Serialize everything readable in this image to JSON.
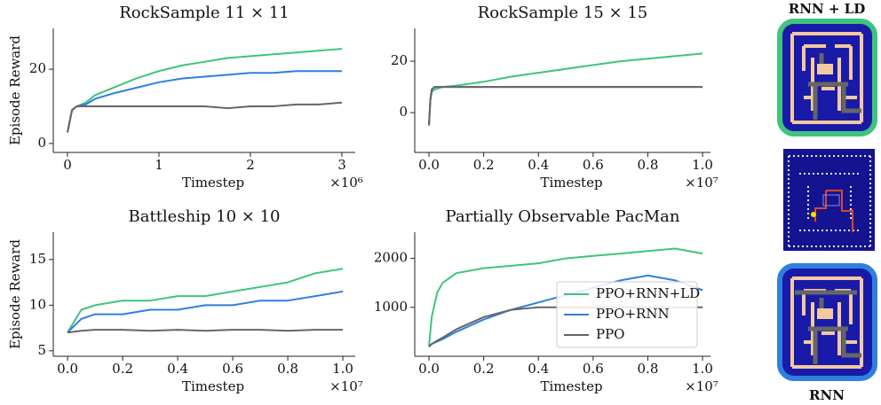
{
  "chart_data": [
    {
      "type": "line",
      "title": "RockSample 11 × 11",
      "x_label": "Timestep",
      "y_label": "Episode Reward",
      "x_multiplier": "×10⁶",
      "x": [
        0,
        0.05,
        0.1,
        0.2,
        0.3,
        0.5,
        0.75,
        1,
        1.25,
        1.5,
        1.75,
        2,
        2.25,
        2.5,
        2.75,
        3
      ],
      "series": [
        {
          "name": "PPO+RNN+LD",
          "color": "#3ec47c",
          "values": [
            3,
            9,
            10,
            11,
            13,
            15,
            17.5,
            19.5,
            21,
            22,
            23,
            23.5,
            24,
            24.5,
            25,
            25.5
          ]
        },
        {
          "name": "PPO+RNN",
          "color": "#2e7fe0",
          "values": [
            3,
            9,
            10,
            10.5,
            12,
            13.5,
            15,
            16.5,
            17.5,
            18,
            18.5,
            19,
            19,
            19.5,
            19.5,
            19.5
          ]
        },
        {
          "name": "PPO",
          "color": "#666666",
          "values": [
            3,
            9,
            10,
            10,
            10,
            10,
            10,
            10,
            10,
            10,
            9.5,
            10,
            10,
            10.5,
            10.5,
            11
          ]
        }
      ],
      "xlim": [
        -0.155,
        3.146
      ],
      "xticks": [
        0,
        1,
        2,
        3
      ],
      "ylim": [
        -2.4,
        31
      ],
      "yticks": [
        0,
        20
      ]
    },
    {
      "type": "line",
      "title": "RockSample 15 × 15",
      "x_label": "Timestep",
      "x_multiplier": "×10⁷",
      "x": [
        0,
        0.005,
        0.01,
        0.02,
        0.05,
        0.1,
        0.2,
        0.3,
        0.4,
        0.5,
        0.6,
        0.7,
        0.8,
        0.9,
        1.0
      ],
      "series": [
        {
          "name": "PPO+RNN+LD",
          "color": "#3ec47c",
          "values": [
            -5,
            5,
            8,
            9,
            10,
            10.5,
            12,
            14,
            15.5,
            17,
            18.5,
            20,
            21,
            22,
            23
          ]
        },
        {
          "name": "PPO+RNN",
          "color": "#2e7fe0",
          "values": [
            -5,
            5,
            9,
            10,
            10,
            10,
            10,
            10,
            10,
            10,
            10,
            10,
            10,
            10,
            10
          ]
        },
        {
          "name": "PPO",
          "color": "#666666",
          "values": [
            -5,
            5,
            9,
            10,
            10,
            10,
            10,
            10,
            10,
            10,
            10,
            10,
            10,
            10,
            10
          ]
        }
      ],
      "xlim": [
        -0.052,
        1.029
      ],
      "xticks": [
        {
          "value": 0,
          "label": "0.0"
        },
        {
          "value": 0.2,
          "label": "0.2"
        },
        {
          "value": 0.4,
          "label": "0.4"
        },
        {
          "value": 0.6,
          "label": "0.6"
        },
        {
          "value": 0.8,
          "label": "0.8"
        },
        {
          "value": 1,
          "label": "1.0"
        }
      ],
      "ylim": [
        -15.5,
        32.8
      ],
      "yticks": [
        0,
        20
      ]
    },
    {
      "type": "line",
      "title": "Battleship 10 × 10",
      "x_label": "Timestep",
      "y_label": "Episode Reward",
      "x_multiplier": "×10⁷",
      "x": [
        0,
        0.05,
        0.1,
        0.2,
        0.3,
        0.4,
        0.5,
        0.6,
        0.7,
        0.8,
        0.9,
        1.0
      ],
      "series": [
        {
          "name": "PPO+RNN+LD",
          "color": "#3ec47c",
          "values": [
            7,
            9.5,
            10,
            10.5,
            10.5,
            11,
            11,
            11.5,
            12,
            12.5,
            13.5,
            14
          ]
        },
        {
          "name": "PPO+RNN",
          "color": "#2e7fe0",
          "values": [
            7,
            8.5,
            9,
            9,
            9.5,
            9.5,
            10,
            10,
            10.5,
            10.5,
            11,
            11.5
          ]
        },
        {
          "name": "PPO",
          "color": "#666666",
          "values": [
            7,
            7.2,
            7.3,
            7.3,
            7.2,
            7.3,
            7.2,
            7.3,
            7.3,
            7.2,
            7.3,
            7.3
          ]
        }
      ],
      "xlim": [
        -0.052,
        1.045
      ],
      "xticks": [
        {
          "value": 0,
          "label": "0.0"
        },
        {
          "value": 0.2,
          "label": "0.2"
        },
        {
          "value": 0.4,
          "label": "0.4"
        },
        {
          "value": 0.6,
          "label": "0.6"
        },
        {
          "value": 0.8,
          "label": "0.8"
        },
        {
          "value": 1,
          "label": "1.0"
        }
      ],
      "ylim": [
        4.4,
        18
      ],
      "yticks": [
        5,
        10,
        15
      ]
    },
    {
      "type": "line",
      "title": "Partially Observable PacMan",
      "x_label": "Timestep",
      "x_multiplier": "×10⁷",
      "legend": "lower right",
      "x": [
        0,
        0.01,
        0.03,
        0.05,
        0.1,
        0.2,
        0.3,
        0.4,
        0.5,
        0.6,
        0.7,
        0.8,
        0.9,
        1.0
      ],
      "series": [
        {
          "name": "PPO+RNN+LD",
          "color": "#3ec47c",
          "values": [
            200,
            800,
            1300,
            1500,
            1700,
            1800,
            1850,
            1900,
            2000,
            2050,
            2100,
            2150,
            2200,
            2100
          ]
        },
        {
          "name": "PPO+RNN",
          "color": "#2e7fe0",
          "values": [
            200,
            250,
            300,
            350,
            500,
            750,
            950,
            1100,
            1250,
            1400,
            1550,
            1650,
            1550,
            1350
          ]
        },
        {
          "name": "PPO",
          "color": "#666666",
          "values": [
            200,
            250,
            320,
            380,
            550,
            800,
            950,
            1000,
            1000,
            1000,
            1000,
            1000,
            1000,
            1000
          ]
        }
      ],
      "xlim": [
        -0.052,
        1.029
      ],
      "xticks": [
        {
          "value": 0,
          "label": "0.0"
        },
        {
          "value": 0.2,
          "label": "0.2"
        },
        {
          "value": 0.4,
          "label": "0.4"
        },
        {
          "value": 0.6,
          "label": "0.6"
        },
        {
          "value": 0.8,
          "label": "0.8"
        },
        {
          "value": 1,
          "label": "1.0"
        }
      ],
      "ylim": [
        0,
        2536
      ],
      "yticks": [
        1000,
        2000
      ]
    }
  ],
  "panels": {
    "top_label": "RNN + LD",
    "bottom_label": "RNN"
  }
}
